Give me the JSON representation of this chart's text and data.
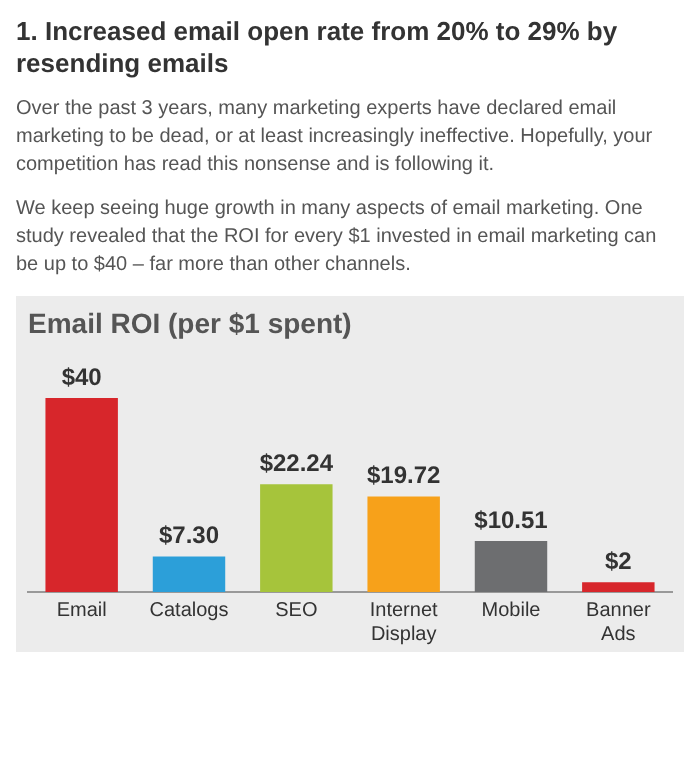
{
  "chart_data": {
    "type": "bar",
    "title": "Email ROI (per $1 spent)",
    "categories": [
      "Email",
      "Catalogs",
      "SEO",
      "Internet Display",
      "Mobile",
      "Banner Ads"
    ],
    "values": [
      40,
      7.3,
      22.24,
      19.72,
      10.51,
      2
    ],
    "value_labels": [
      "$40",
      "$7.30",
      "$22.24",
      "$19.72",
      "$10.51",
      "$2"
    ],
    "colors": [
      "#d7262b",
      "#2c9fd9",
      "#a6c43b",
      "#f7a11a",
      "#6d6e70",
      "#d7262b"
    ],
    "grid": false,
    "legend": false,
    "annotations": [
      "1. Increased email open rate from 20% to 29% by resending emails",
      "Over the past 3 years, many marketing experts have declared email marketing to be dead, or at least increasingly ineffective.  Hopefully, your competition has read this nonsense and is following it.",
      "We keep seeing huge growth in many aspects of email marketing. One study revealed that the ROI for every $1 invested in email marketing can be up to $40 – far more than other channels."
    ]
  }
}
